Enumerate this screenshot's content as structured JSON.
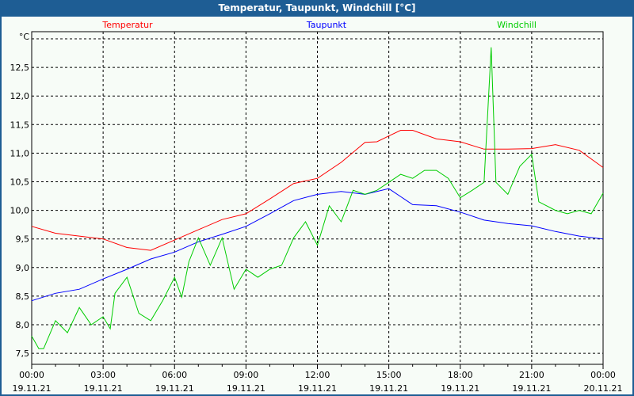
{
  "window": {
    "title": "Temperatur, Taupunkt, Windchill [°C]"
  },
  "chart_data": {
    "type": "line",
    "title": "Temperatur, Taupunkt, Windchill [°C]",
    "ylabel": "°C",
    "ylim": [
      7.32,
      13.0
    ],
    "xlim": [
      0,
      24
    ],
    "grid": true,
    "yticks": [
      7.5,
      8.0,
      8.5,
      9.0,
      9.5,
      10.0,
      10.5,
      11.0,
      11.5,
      12.0,
      12.5
    ],
    "ytick_labels": [
      "7,5",
      "8,0",
      "8,5",
      "9,0",
      "9,5",
      "10,0",
      "10,5",
      "11,0",
      "11,5",
      "12,0",
      "12,5"
    ],
    "xticks": [
      {
        "time": "00:00",
        "date": "19.11.21"
      },
      {
        "time": "03:00",
        "date": "19.11.21"
      },
      {
        "time": "06:00",
        "date": "19.11.21"
      },
      {
        "time": "09:00",
        "date": "19.11.21"
      },
      {
        "time": "12:00",
        "date": "19.11.21"
      },
      {
        "time": "15:00",
        "date": "19.11.21"
      },
      {
        "time": "18:00",
        "date": "19.11.21"
      },
      {
        "time": "21:00",
        "date": "19.11.21"
      },
      {
        "time": "00:00",
        "date": "20.11.21"
      }
    ],
    "series": [
      {
        "name": "Temperatur",
        "color": "#ff0000",
        "x": [
          0,
          1,
          2,
          3,
          4,
          5,
          6,
          7,
          8,
          9,
          10,
          11,
          12,
          13,
          14,
          14.5,
          15,
          15.5,
          16,
          17,
          18,
          19,
          20,
          21,
          22,
          23,
          24
        ],
        "values": [
          9.72,
          9.6,
          9.55,
          9.5,
          9.35,
          9.3,
          9.48,
          9.66,
          9.84,
          9.94,
          10.2,
          10.47,
          10.56,
          10.84,
          11.19,
          11.2,
          11.3,
          11.4,
          11.4,
          11.25,
          11.2,
          11.07,
          11.07,
          11.08,
          11.15,
          11.05,
          10.75
        ]
      },
      {
        "name": "Taupunkt",
        "color": "#0000ff",
        "x": [
          0,
          1,
          2,
          3,
          4,
          5,
          6,
          7,
          8,
          9,
          10,
          11,
          12,
          13,
          14,
          15,
          16,
          17,
          18,
          19,
          20,
          21,
          22,
          23,
          24
        ],
        "values": [
          8.42,
          8.55,
          8.62,
          8.8,
          8.97,
          9.15,
          9.27,
          9.45,
          9.58,
          9.72,
          9.94,
          10.17,
          10.28,
          10.33,
          10.28,
          10.38,
          10.1,
          10.08,
          9.97,
          9.83,
          9.77,
          9.73,
          9.63,
          9.55,
          9.5
        ]
      },
      {
        "name": "Windchill",
        "color": "#00cc00",
        "x": [
          0,
          0.3,
          0.5,
          1,
          1.5,
          2,
          2.5,
          3,
          3.3,
          3.5,
          4,
          4.5,
          5,
          5.5,
          6,
          6.3,
          6.6,
          7,
          7.5,
          8,
          8.5,
          9,
          9.5,
          10,
          10.5,
          11,
          11.5,
          12,
          12.5,
          13,
          13.5,
          14,
          14.5,
          15,
          15.5,
          16,
          16.5,
          17,
          17.5,
          18,
          18.5,
          19,
          19.3,
          19.5,
          20,
          20.5,
          21,
          21.3,
          22,
          22.5,
          23,
          23.5,
          24
        ],
        "values": [
          7.8,
          7.58,
          7.58,
          8.07,
          7.86,
          8.3,
          8.0,
          8.14,
          7.93,
          8.55,
          8.83,
          8.2,
          8.07,
          8.42,
          8.83,
          8.48,
          9.1,
          9.52,
          9.04,
          9.52,
          8.62,
          8.97,
          8.83,
          8.97,
          9.04,
          9.52,
          9.8,
          9.39,
          10.08,
          9.8,
          10.35,
          10.28,
          10.35,
          10.49,
          10.63,
          10.56,
          10.7,
          10.7,
          10.56,
          10.22,
          10.35,
          10.49,
          12.85,
          10.49,
          10.28,
          10.77,
          10.98,
          10.15,
          10.0,
          9.94,
          10.0,
          9.94,
          10.3
        ]
      }
    ]
  }
}
